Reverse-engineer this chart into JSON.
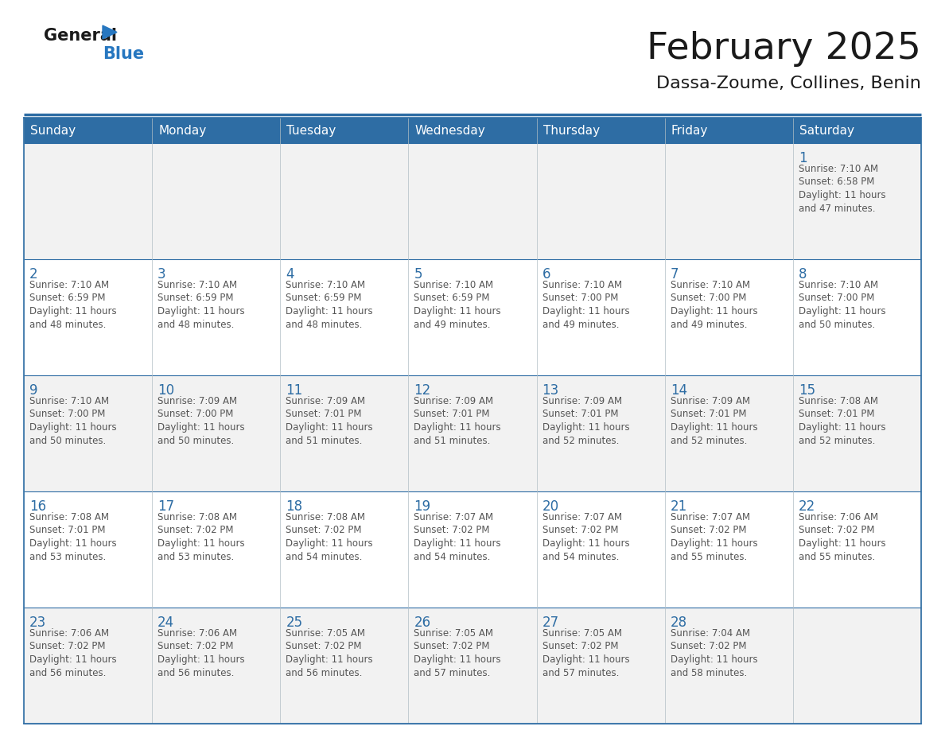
{
  "title": "February 2025",
  "subtitle": "Dassa-Zoume, Collines, Benin",
  "days_of_week": [
    "Sunday",
    "Monday",
    "Tuesday",
    "Wednesday",
    "Thursday",
    "Friday",
    "Saturday"
  ],
  "header_bg": "#2E6DA4",
  "header_text": "#FFFFFF",
  "cell_bg_odd": "#F2F2F2",
  "cell_bg_even": "#FFFFFF",
  "border_color": "#2E6DA4",
  "day_num_color": "#2E6DA4",
  "cell_text_color": "#555555",
  "title_color": "#1A1A1A",
  "subtitle_color": "#1A1A1A",
  "logo_general_color": "#1A1A1A",
  "logo_blue_color": "#2777C0",
  "calendar_data": [
    [
      null,
      null,
      null,
      null,
      null,
      null,
      {
        "day": 1,
        "sunrise": "7:10 AM",
        "sunset": "6:58 PM",
        "daylight_h": "11 hours",
        "daylight_m": "and 47 minutes."
      }
    ],
    [
      {
        "day": 2,
        "sunrise": "7:10 AM",
        "sunset": "6:59 PM",
        "daylight_h": "11 hours",
        "daylight_m": "and 48 minutes."
      },
      {
        "day": 3,
        "sunrise": "7:10 AM",
        "sunset": "6:59 PM",
        "daylight_h": "11 hours",
        "daylight_m": "and 48 minutes."
      },
      {
        "day": 4,
        "sunrise": "7:10 AM",
        "sunset": "6:59 PM",
        "daylight_h": "11 hours",
        "daylight_m": "and 48 minutes."
      },
      {
        "day": 5,
        "sunrise": "7:10 AM",
        "sunset": "6:59 PM",
        "daylight_h": "11 hours",
        "daylight_m": "and 49 minutes."
      },
      {
        "day": 6,
        "sunrise": "7:10 AM",
        "sunset": "7:00 PM",
        "daylight_h": "11 hours",
        "daylight_m": "and 49 minutes."
      },
      {
        "day": 7,
        "sunrise": "7:10 AM",
        "sunset": "7:00 PM",
        "daylight_h": "11 hours",
        "daylight_m": "and 49 minutes."
      },
      {
        "day": 8,
        "sunrise": "7:10 AM",
        "sunset": "7:00 PM",
        "daylight_h": "11 hours",
        "daylight_m": "and 50 minutes."
      }
    ],
    [
      {
        "day": 9,
        "sunrise": "7:10 AM",
        "sunset": "7:00 PM",
        "daylight_h": "11 hours",
        "daylight_m": "and 50 minutes."
      },
      {
        "day": 10,
        "sunrise": "7:09 AM",
        "sunset": "7:00 PM",
        "daylight_h": "11 hours",
        "daylight_m": "and 50 minutes."
      },
      {
        "day": 11,
        "sunrise": "7:09 AM",
        "sunset": "7:01 PM",
        "daylight_h": "11 hours",
        "daylight_m": "and 51 minutes."
      },
      {
        "day": 12,
        "sunrise": "7:09 AM",
        "sunset": "7:01 PM",
        "daylight_h": "11 hours",
        "daylight_m": "and 51 minutes."
      },
      {
        "day": 13,
        "sunrise": "7:09 AM",
        "sunset": "7:01 PM",
        "daylight_h": "11 hours",
        "daylight_m": "and 52 minutes."
      },
      {
        "day": 14,
        "sunrise": "7:09 AM",
        "sunset": "7:01 PM",
        "daylight_h": "11 hours",
        "daylight_m": "and 52 minutes."
      },
      {
        "day": 15,
        "sunrise": "7:08 AM",
        "sunset": "7:01 PM",
        "daylight_h": "11 hours",
        "daylight_m": "and 52 minutes."
      }
    ],
    [
      {
        "day": 16,
        "sunrise": "7:08 AM",
        "sunset": "7:01 PM",
        "daylight_h": "11 hours",
        "daylight_m": "and 53 minutes."
      },
      {
        "day": 17,
        "sunrise": "7:08 AM",
        "sunset": "7:02 PM",
        "daylight_h": "11 hours",
        "daylight_m": "and 53 minutes."
      },
      {
        "day": 18,
        "sunrise": "7:08 AM",
        "sunset": "7:02 PM",
        "daylight_h": "11 hours",
        "daylight_m": "and 54 minutes."
      },
      {
        "day": 19,
        "sunrise": "7:07 AM",
        "sunset": "7:02 PM",
        "daylight_h": "11 hours",
        "daylight_m": "and 54 minutes."
      },
      {
        "day": 20,
        "sunrise": "7:07 AM",
        "sunset": "7:02 PM",
        "daylight_h": "11 hours",
        "daylight_m": "and 54 minutes."
      },
      {
        "day": 21,
        "sunrise": "7:07 AM",
        "sunset": "7:02 PM",
        "daylight_h": "11 hours",
        "daylight_m": "and 55 minutes."
      },
      {
        "day": 22,
        "sunrise": "7:06 AM",
        "sunset": "7:02 PM",
        "daylight_h": "11 hours",
        "daylight_m": "and 55 minutes."
      }
    ],
    [
      {
        "day": 23,
        "sunrise": "7:06 AM",
        "sunset": "7:02 PM",
        "daylight_h": "11 hours",
        "daylight_m": "and 56 minutes."
      },
      {
        "day": 24,
        "sunrise": "7:06 AM",
        "sunset": "7:02 PM",
        "daylight_h": "11 hours",
        "daylight_m": "and 56 minutes."
      },
      {
        "day": 25,
        "sunrise": "7:05 AM",
        "sunset": "7:02 PM",
        "daylight_h": "11 hours",
        "daylight_m": "and 56 minutes."
      },
      {
        "day": 26,
        "sunrise": "7:05 AM",
        "sunset": "7:02 PM",
        "daylight_h": "11 hours",
        "daylight_m": "and 57 minutes."
      },
      {
        "day": 27,
        "sunrise": "7:05 AM",
        "sunset": "7:02 PM",
        "daylight_h": "11 hours",
        "daylight_m": "and 57 minutes."
      },
      {
        "day": 28,
        "sunrise": "7:04 AM",
        "sunset": "7:02 PM",
        "daylight_h": "11 hours",
        "daylight_m": "and 58 minutes."
      },
      null
    ]
  ]
}
